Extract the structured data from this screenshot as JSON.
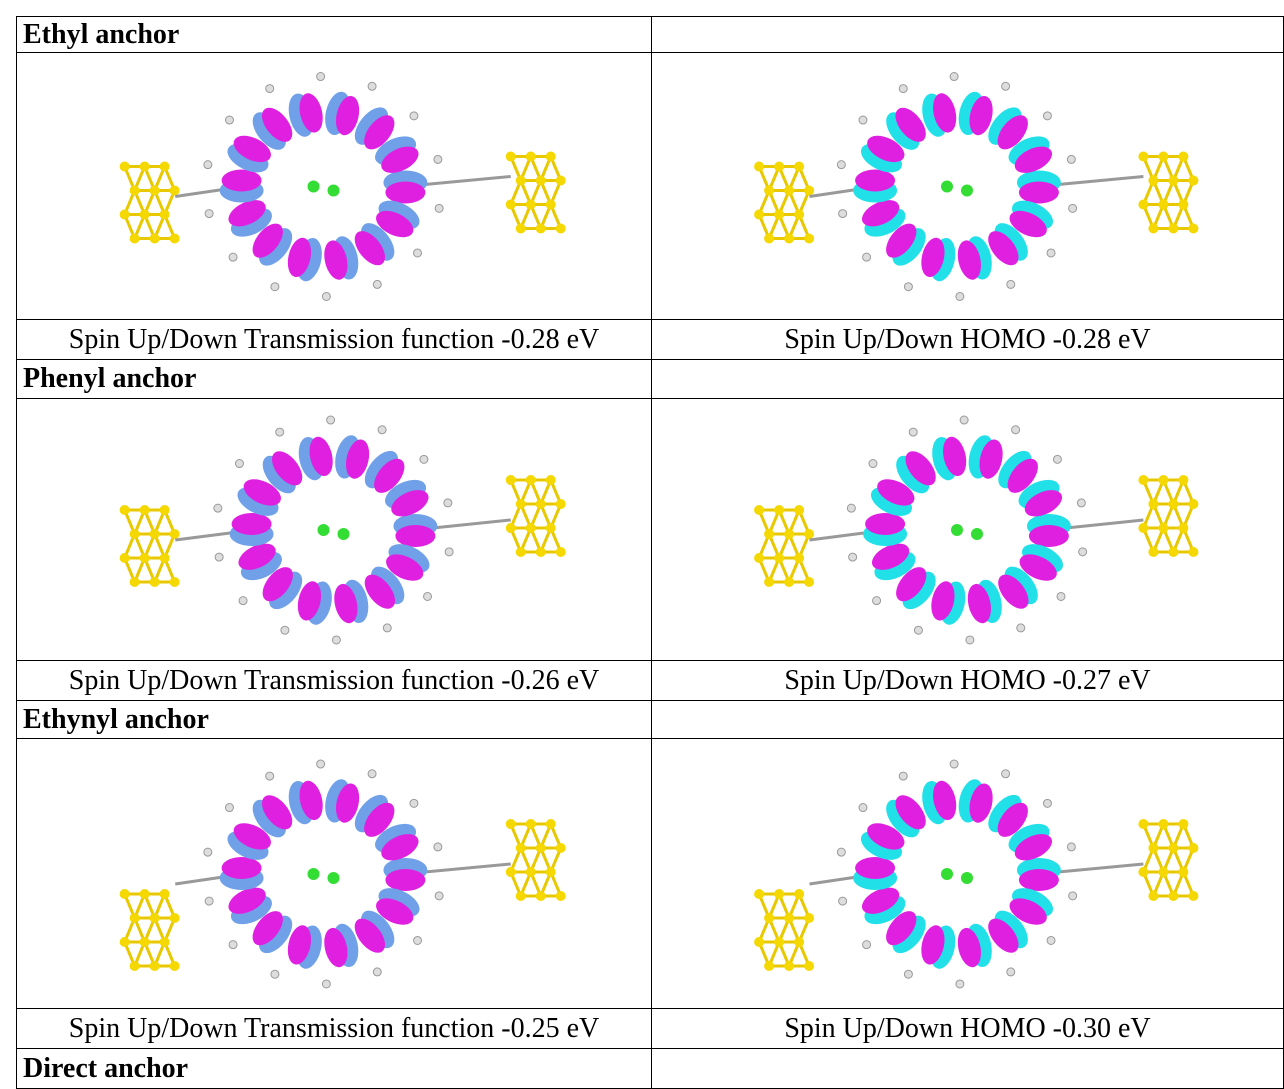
{
  "sections": [
    {
      "title": "Ethyl anchor",
      "captions": [
        "Spin Up/Down Transmission function -0.28 eV",
        "Spin Up/Down HOMO -0.28 eV"
      ]
    },
    {
      "title": "Phenyl anchor",
      "captions": [
        "Spin Up/Down Transmission function -0.26 eV",
        "Spin Up/Down HOMO -0.27 eV"
      ]
    },
    {
      "title": "Ethynyl anchor",
      "captions": [
        "Spin Up/Down Transmission function -0.25 eV",
        "Spin Up/Down HOMO -0.30 eV"
      ]
    },
    {
      "title": "Direct anchor"
    }
  ]
}
